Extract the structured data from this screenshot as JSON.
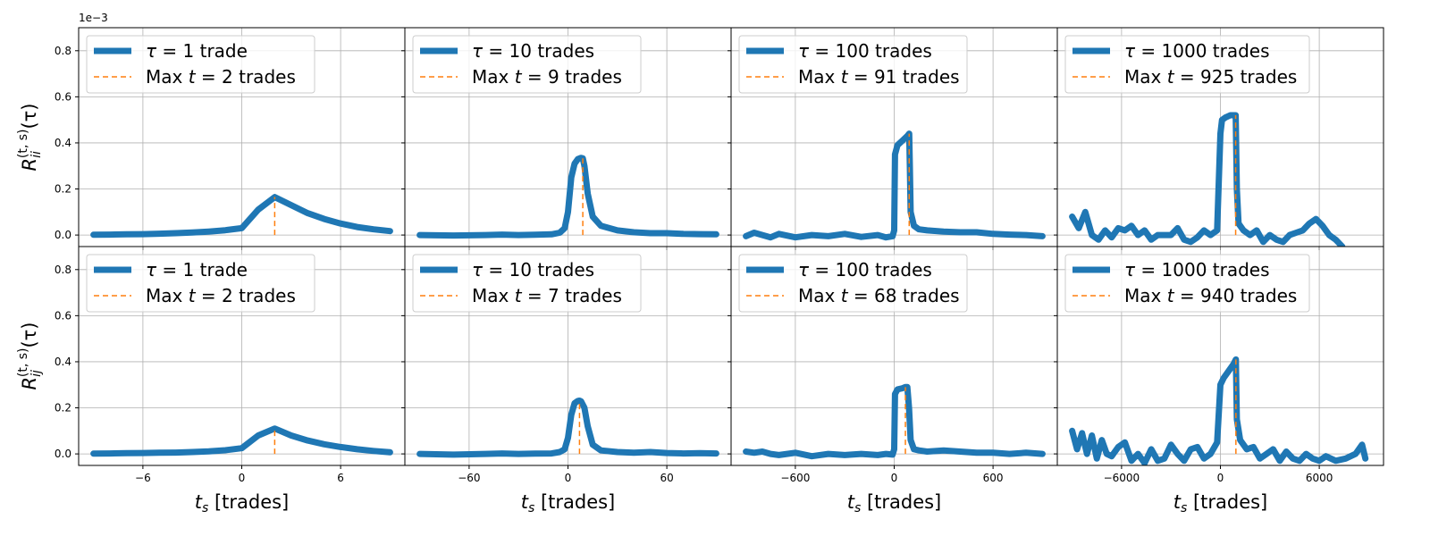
{
  "figure": {
    "scale_note": "1e−3",
    "ylabel_top_html": "R<tspan font-style='italic'>ii</tspan>",
    "colors": {
      "series": "#1f77b4",
      "max_marker": "#ff7f0e",
      "grid": "#b0b0b0"
    }
  },
  "chart_data": [
    {
      "type": "line",
      "row": "top",
      "col": 0,
      "ylabel": "R_ii^(t,s)(τ)",
      "xlabel": "",
      "xlim": [
        -9.9,
        9.9
      ],
      "ylim": [
        -0.05,
        0.9
      ],
      "xticks": [
        -6,
        0,
        6
      ],
      "xtick_labels": [
        "",
        "",
        ""
      ],
      "yticks": [
        0.0,
        0.2,
        0.4,
        0.6,
        0.8
      ],
      "ytick_labels": [
        "0.0",
        "0.2",
        "0.4",
        "0.6",
        "0.8"
      ],
      "grid": true,
      "legend_position": "upper-left",
      "series": [
        {
          "legend": "τ = 1 trade",
          "x": [
            -9,
            -8,
            -7,
            -6,
            -5,
            -4,
            -3,
            -2,
            -1,
            0,
            1,
            2,
            3,
            4,
            5,
            6,
            7,
            8,
            9
          ],
          "y": [
            0.001,
            0.002,
            0.003,
            0.004,
            0.006,
            0.008,
            0.011,
            0.015,
            0.021,
            0.03,
            0.11,
            0.165,
            0.13,
            0.095,
            0.07,
            0.05,
            0.035,
            0.025,
            0.017
          ]
        }
      ],
      "max_line": {
        "legend": "Max t = 2 trades",
        "x": 2
      }
    },
    {
      "type": "line",
      "row": "top",
      "col": 1,
      "xlim": [
        -99,
        99
      ],
      "ylim": [
        -0.05,
        0.9
      ],
      "xticks": [
        -60,
        0,
        60
      ],
      "xtick_labels": [
        "",
        "",
        ""
      ],
      "yticks": [
        0.0,
        0.2,
        0.4,
        0.6,
        0.8
      ],
      "ytick_labels": [
        "",
        "",
        "",
        "",
        ""
      ],
      "grid": true,
      "legend_position": "upper-left",
      "series": [
        {
          "legend": "τ = 10 trades",
          "x": [
            -90,
            -70,
            -50,
            -40,
            -30,
            -20,
            -10,
            -5,
            -2,
            0,
            2,
            4,
            6,
            8,
            9,
            10,
            12,
            15,
            20,
            30,
            40,
            50,
            60,
            70,
            80,
            90
          ],
          "y": [
            0.0,
            -0.002,
            0.0,
            0.002,
            0.0,
            0.001,
            0.003,
            0.01,
            0.03,
            0.1,
            0.25,
            0.31,
            0.33,
            0.335,
            0.333,
            0.3,
            0.18,
            0.08,
            0.04,
            0.02,
            0.012,
            0.008,
            0.008,
            0.005,
            0.004,
            0.003
          ]
        }
      ],
      "max_line": {
        "legend": "Max t = 9 trades",
        "x": 9
      }
    },
    {
      "type": "line",
      "row": "top",
      "col": 2,
      "xlim": [
        -990,
        990
      ],
      "ylim": [
        -0.05,
        0.9
      ],
      "xticks": [
        -600,
        0,
        600
      ],
      "xtick_labels": [
        "",
        "",
        ""
      ],
      "yticks": [
        0.0,
        0.2,
        0.4,
        0.6,
        0.8
      ],
      "ytick_labels": [
        "",
        "",
        "",
        "",
        ""
      ],
      "grid": true,
      "legend_position": "upper-left",
      "series": [
        {
          "legend": "τ = 100 trades",
          "x": [
            -900,
            -850,
            -800,
            -750,
            -700,
            -600,
            -500,
            -400,
            -300,
            -200,
            -100,
            -50,
            -10,
            0,
            5,
            20,
            50,
            80,
            91,
            95,
            100,
            120,
            150,
            200,
            300,
            400,
            500,
            600,
            700,
            800,
            900
          ],
          "y": [
            -0.005,
            0.01,
            0.0,
            -0.01,
            0.005,
            -0.01,
            0.0,
            -0.005,
            0.005,
            -0.008,
            0.0,
            -0.01,
            -0.005,
            0.02,
            0.35,
            0.39,
            0.41,
            0.43,
            0.44,
            0.3,
            0.1,
            0.04,
            0.025,
            0.02,
            0.015,
            0.012,
            0.012,
            0.005,
            0.002,
            0.0,
            -0.005
          ]
        }
      ],
      "max_line": {
        "legend": "Max t = 91 trades",
        "x": 91
      }
    },
    {
      "type": "line",
      "row": "top",
      "col": 3,
      "xlim": [
        -9900,
        9900
      ],
      "ylim": [
        -0.05,
        0.9
      ],
      "xticks": [
        -6000,
        0,
        6000
      ],
      "xtick_labels": [
        "",
        "",
        ""
      ],
      "yticks": [
        0.0,
        0.2,
        0.4,
        0.6,
        0.8
      ],
      "ytick_labels": [
        "",
        "",
        "",
        "",
        ""
      ],
      "grid": true,
      "legend_position": "upper-left",
      "series": [
        {
          "legend": "τ = 1000 trades",
          "x": [
            -9000,
            -8600,
            -8200,
            -7800,
            -7400,
            -7000,
            -6600,
            -6200,
            -5800,
            -5400,
            -5000,
            -4600,
            -4200,
            -3800,
            -3400,
            -3000,
            -2600,
            -2200,
            -1800,
            -1400,
            -1000,
            -600,
            -200,
            0,
            100,
            300,
            600,
            925,
            1000,
            1100,
            1400,
            1800,
            2200,
            2600,
            3000,
            3400,
            3800,
            4200,
            4600,
            5000,
            5400,
            5800,
            6200,
            6600,
            7000,
            7400
          ],
          "y": [
            0.08,
            0.03,
            0.1,
            0.0,
            -0.02,
            0.02,
            -0.01,
            0.03,
            0.02,
            0.04,
            0.0,
            0.02,
            -0.02,
            0.0,
            0.0,
            0.0,
            0.03,
            -0.02,
            -0.03,
            -0.01,
            0.02,
            0.0,
            0.02,
            0.44,
            0.5,
            0.51,
            0.52,
            0.52,
            0.2,
            0.05,
            0.02,
            0.0,
            0.02,
            -0.03,
            0.0,
            -0.02,
            -0.03,
            0.0,
            0.01,
            0.02,
            0.05,
            0.07,
            0.04,
            0.0,
            -0.02,
            -0.05
          ]
        }
      ],
      "max_line": {
        "legend": "Max t = 925 trades",
        "x": 925
      }
    },
    {
      "type": "line",
      "row": "bottom",
      "col": 0,
      "ylabel": "R_ij^(t,s)(τ)",
      "xlabel": "t_s [trades]",
      "xlim": [
        -9.9,
        9.9
      ],
      "ylim": [
        -0.05,
        0.9
      ],
      "xticks": [
        -6,
        0,
        6
      ],
      "xtick_labels": [
        "−6",
        "0",
        "6"
      ],
      "yticks": [
        0.0,
        0.2,
        0.4,
        0.6,
        0.8
      ],
      "ytick_labels": [
        "0.0",
        "0.2",
        "0.4",
        "0.6",
        "0.8"
      ],
      "grid": true,
      "legend_position": "upper-left",
      "series": [
        {
          "legend": "τ = 1 trade",
          "x": [
            -9,
            -8,
            -7,
            -6,
            -5,
            -4,
            -3,
            -2,
            -1,
            0,
            1,
            2,
            3,
            4,
            5,
            6,
            7,
            8,
            9
          ],
          "y": [
            0.001,
            0.002,
            0.003,
            0.004,
            0.005,
            0.006,
            0.008,
            0.011,
            0.016,
            0.025,
            0.08,
            0.11,
            0.08,
            0.058,
            0.042,
            0.03,
            0.02,
            0.013,
            0.007
          ]
        }
      ],
      "max_line": {
        "legend": "Max t = 2 trades",
        "x": 2
      }
    },
    {
      "type": "line",
      "row": "bottom",
      "col": 1,
      "xlabel": "t_s [trades]",
      "xlim": [
        -99,
        99
      ],
      "ylim": [
        -0.05,
        0.9
      ],
      "xticks": [
        -60,
        0,
        60
      ],
      "xtick_labels": [
        "−60",
        "0",
        "60"
      ],
      "yticks": [
        0.0,
        0.2,
        0.4,
        0.6,
        0.8
      ],
      "ytick_labels": [
        "",
        "",
        "",
        "",
        ""
      ],
      "grid": true,
      "legend_position": "upper-left",
      "series": [
        {
          "legend": "τ = 10 trades",
          "x": [
            -90,
            -70,
            -50,
            -40,
            -30,
            -20,
            -10,
            -5,
            -2,
            0,
            2,
            4,
            6,
            7,
            8,
            10,
            12,
            15,
            20,
            30,
            40,
            50,
            60,
            70,
            80,
            90
          ],
          "y": [
            0.0,
            -0.003,
            0.0,
            0.002,
            0.0,
            0.001,
            0.002,
            0.008,
            0.02,
            0.07,
            0.17,
            0.22,
            0.23,
            0.231,
            0.228,
            0.2,
            0.12,
            0.04,
            0.015,
            0.008,
            0.005,
            0.008,
            0.004,
            0.002,
            0.003,
            0.002
          ]
        }
      ],
      "max_line": {
        "legend": "Max t = 7 trades",
        "x": 7
      }
    },
    {
      "type": "line",
      "row": "bottom",
      "col": 2,
      "xlabel": "t_s [trades]",
      "xlim": [
        -990,
        990
      ],
      "ylim": [
        -0.05,
        0.9
      ],
      "xticks": [
        -600,
        0,
        600
      ],
      "xtick_labels": [
        "−600",
        "0",
        "600"
      ],
      "yticks": [
        0.0,
        0.2,
        0.4,
        0.6,
        0.8
      ],
      "ytick_labels": [
        "",
        "",
        "",
        "",
        ""
      ],
      "grid": true,
      "legend_position": "upper-left",
      "series": [
        {
          "legend": "τ = 100 trades",
          "x": [
            -900,
            -850,
            -800,
            -750,
            -700,
            -600,
            -500,
            -400,
            -300,
            -200,
            -100,
            -50,
            -10,
            0,
            5,
            20,
            50,
            68,
            80,
            90,
            100,
            120,
            150,
            200,
            300,
            400,
            500,
            600,
            700,
            800,
            900
          ],
          "y": [
            0.01,
            0.005,
            0.01,
            0.0,
            -0.005,
            0.005,
            -0.01,
            0.0,
            -0.005,
            0.0,
            -0.005,
            0.0,
            -0.003,
            0.02,
            0.26,
            0.28,
            0.285,
            0.29,
            0.29,
            0.2,
            0.06,
            0.02,
            0.015,
            0.01,
            0.015,
            0.01,
            0.005,
            0.005,
            0.0,
            0.005,
            0.0
          ]
        }
      ],
      "max_line": {
        "legend": "Max t = 68 trades",
        "x": 68
      }
    },
    {
      "type": "line",
      "row": "bottom",
      "col": 3,
      "xlabel": "t_s [trades]",
      "xlim": [
        -9900,
        9900
      ],
      "ylim": [
        -0.05,
        0.9
      ],
      "xticks": [
        -6000,
        0,
        6000
      ],
      "xtick_labels": [
        "−6000",
        "0",
        "6000"
      ],
      "yticks": [
        0.0,
        0.2,
        0.4,
        0.6,
        0.8
      ],
      "ytick_labels": [
        "",
        "",
        "",
        "",
        ""
      ],
      "grid": true,
      "legend_position": "upper-left",
      "series": [
        {
          "legend": "τ = 1000 trades",
          "x": [
            -9000,
            -8700,
            -8400,
            -8100,
            -7800,
            -7500,
            -7200,
            -6900,
            -6600,
            -6200,
            -5800,
            -5400,
            -5000,
            -4600,
            -4200,
            -3800,
            -3400,
            -3000,
            -2600,
            -2200,
            -1800,
            -1400,
            -1000,
            -600,
            -200,
            0,
            200,
            500,
            800,
            940,
            1000,
            1200,
            1600,
            2000,
            2400,
            2800,
            3200,
            3600,
            4000,
            4400,
            4800,
            5200,
            5600,
            6000,
            6400,
            7000,
            7600,
            8200,
            8600,
            8800
          ],
          "y": [
            0.1,
            0.02,
            0.09,
            0.0,
            0.08,
            -0.02,
            0.06,
            0.0,
            -0.01,
            0.03,
            0.05,
            -0.03,
            0.0,
            -0.04,
            0.02,
            -0.03,
            -0.02,
            0.04,
            0.0,
            -0.03,
            0.02,
            0.03,
            -0.02,
            0.0,
            0.05,
            0.3,
            0.33,
            0.36,
            0.39,
            0.41,
            0.15,
            0.06,
            0.02,
            0.03,
            -0.02,
            0.0,
            0.02,
            -0.03,
            0.01,
            -0.02,
            -0.03,
            0.0,
            -0.02,
            -0.03,
            -0.01,
            -0.03,
            -0.02,
            0.0,
            0.04,
            -0.02
          ]
        }
      ],
      "max_line": {
        "legend": "Max t = 940 trades",
        "x": 940
      }
    }
  ]
}
